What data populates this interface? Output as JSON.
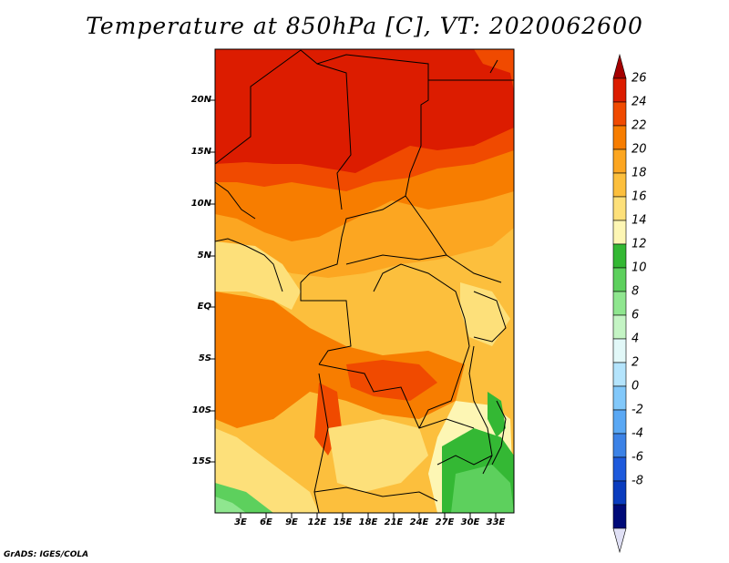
{
  "title": "Temperature at 850hPa [C], VT: 2020062600",
  "credit": "GrADS: IGES/COLA",
  "y_axis_labels": [
    "20N",
    "15N",
    "10N",
    "5N",
    "EQ",
    "5S",
    "10S",
    "15S"
  ],
  "x_axis_labels": [
    "3E",
    "6E",
    "9E",
    "12E",
    "15E",
    "18E",
    "21E",
    "24E",
    "27E",
    "30E",
    "33E"
  ],
  "colorbar": {
    "labels": [
      "26",
      "24",
      "22",
      "20",
      "18",
      "16",
      "14",
      "12",
      "10",
      "8",
      "6",
      "4",
      "2",
      "0",
      "-2",
      "-4",
      "-6",
      "-8"
    ],
    "colors": [
      "#a50000",
      "#dc1c00",
      "#f04a00",
      "#f77d00",
      "#fca621",
      "#fcbf3d",
      "#fde07a",
      "#fdf6b4",
      "#34b834",
      "#5dd05d",
      "#8fe68f",
      "#c4f4c4",
      "#e2f8f8",
      "#b4e4fc",
      "#82c8fa",
      "#5aa8f4",
      "#3c82e6",
      "#1e5adc",
      "#0a3cbe",
      "#000a78",
      "#e0e0f5"
    ]
  },
  "map": {
    "projection": "lat-lon",
    "lon_range": [
      0,
      35
    ],
    "lat_range": [
      -20,
      25
    ],
    "region": "Central Africa",
    "variable": "Temperature at 850hPa",
    "units": "C"
  }
}
